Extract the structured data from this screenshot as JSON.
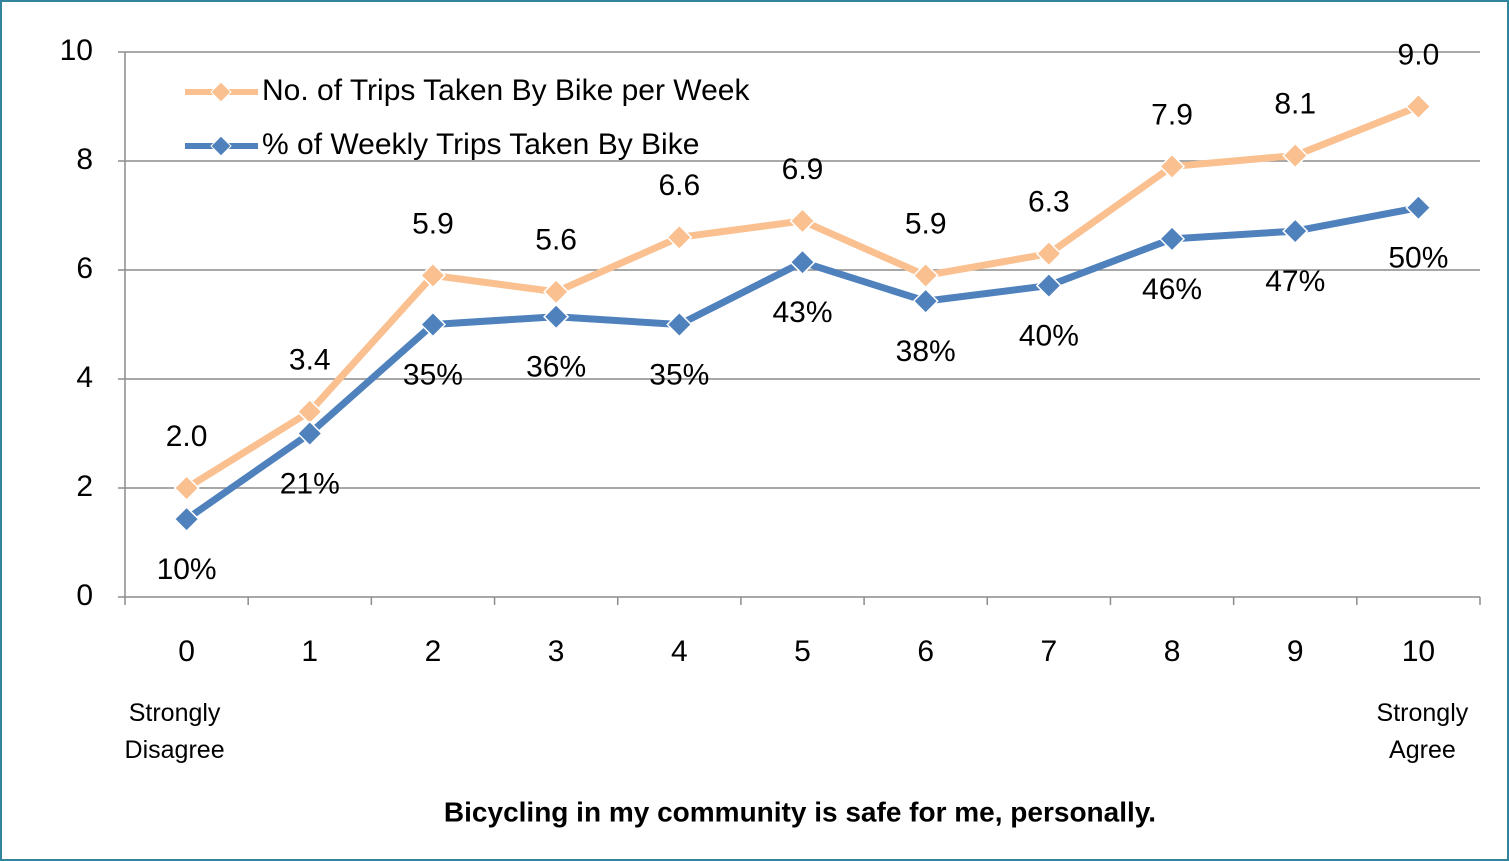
{
  "chart_data": {
    "type": "line",
    "categories": [
      "0",
      "1",
      "2",
      "3",
      "4",
      "5",
      "6",
      "7",
      "8",
      "9",
      "10"
    ],
    "annotations": [
      "Strongly Disagree",
      "Strongly Agree"
    ],
    "xlabel": "Bicycling in my community is safe for me, personally.",
    "series": [
      {
        "name": "No. of Trips Taken By Bike per Week",
        "color": "#fac090",
        "values": [
          2.0,
          3.4,
          5.9,
          5.6,
          6.6,
          6.9,
          5.9,
          6.3,
          7.9,
          8.1,
          9.0
        ],
        "value_labels": [
          "2.0",
          "3.4",
          "5.9",
          "5.6",
          "6.6",
          "6.9",
          "5.9",
          "6.3",
          "7.9",
          "8.1",
          "9.0"
        ]
      },
      {
        "name": "% of Weekly Trips Taken By Bike",
        "color": "#4f81bd",
        "axis": "y2",
        "values": [
          10,
          21,
          35,
          36,
          35,
          43,
          38,
          40,
          46,
          47,
          50
        ],
        "value_labels": [
          "10%",
          "21%",
          "35%",
          "36%",
          "35%",
          "43%",
          "38%",
          "40%",
          "46%",
          "47%",
          "50%"
        ]
      }
    ],
    "ylim": [
      0,
      10
    ],
    "yticks": [
      0,
      2,
      4,
      6,
      8,
      10
    ],
    "y2lim": [
      0,
      70
    ],
    "grid": true,
    "legend": "upper left"
  }
}
